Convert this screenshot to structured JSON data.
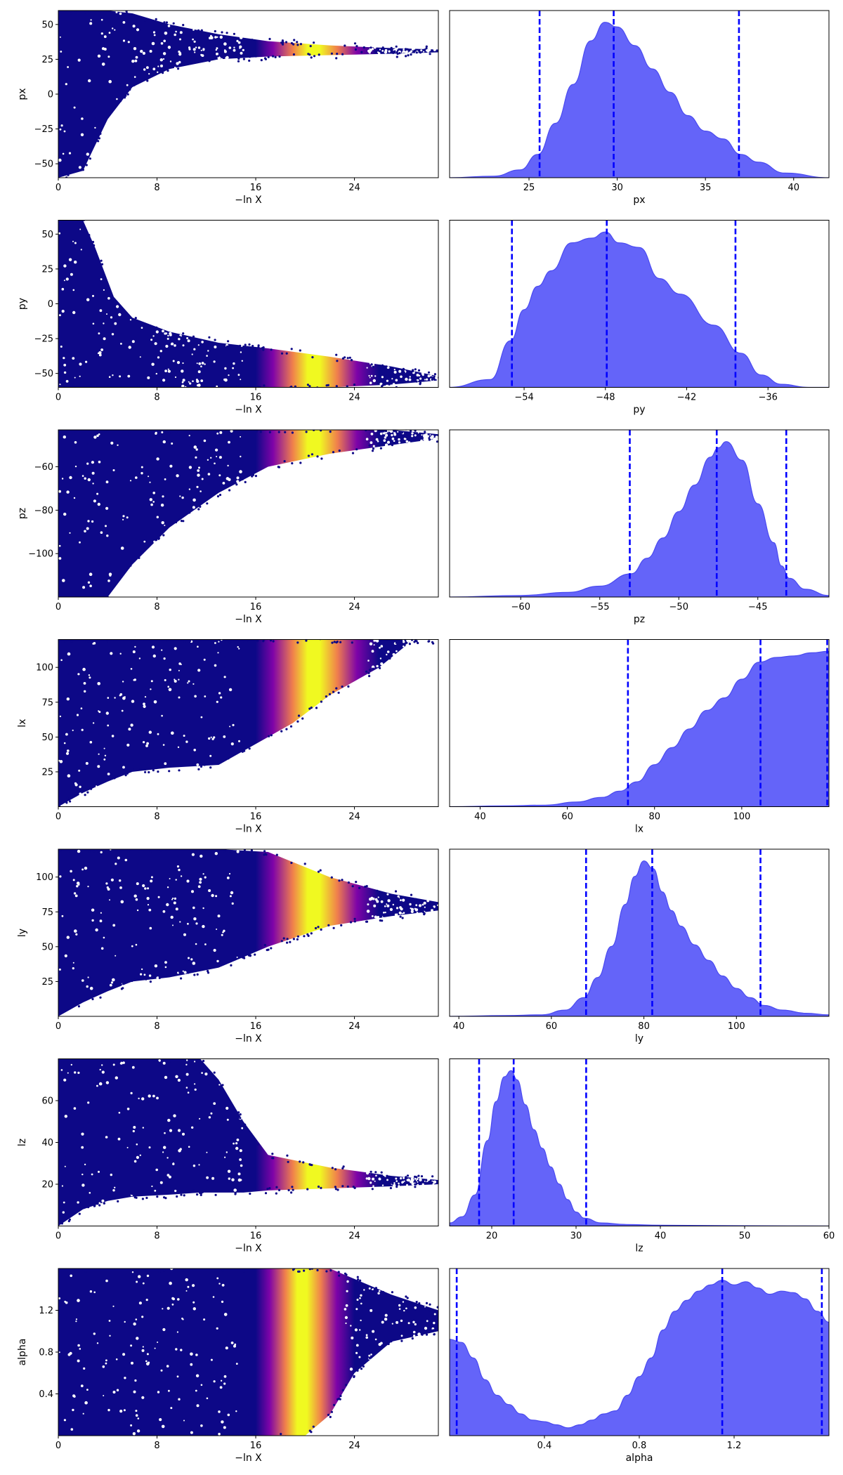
{
  "colors": {
    "kde_fill": "#6464f9",
    "kde_edge": "#4a4af0",
    "quantile_line": "#0000ff",
    "scatter_low": "#0d0887",
    "scatter_mid": "#7e03a8",
    "scatter_orange": "#f0804c",
    "scatter_peak": "#f0f921"
  },
  "chart_data": [
    {
      "param": "px",
      "trace": {
        "type": "scatter",
        "xlabel": "−ln X",
        "ylabel": "px",
        "xlim": [
          0,
          30.8
        ],
        "ylim": [
          -60,
          60
        ],
        "xticks": [
          {
            "v": 0,
            "t": "0"
          },
          {
            "v": 8,
            "t": "8"
          },
          {
            "v": 16,
            "t": "16"
          },
          {
            "v": 24,
            "t": "24"
          }
        ],
        "yticks": [
          {
            "v": -50,
            "t": "−50"
          },
          {
            "v": -25,
            "t": "−25"
          },
          {
            "v": 0,
            "t": "0"
          },
          {
            "v": 25,
            "t": "25"
          },
          {
            "v": 50,
            "t": "50"
          }
        ],
        "envelope": {
          "x": [
            0,
            2,
            4,
            6,
            9,
            13,
            17,
            22,
            27,
            30.8
          ],
          "upper": [
            60,
            60,
            60,
            58,
            50,
            43,
            38,
            35,
            33,
            32
          ],
          "lower": [
            -60,
            -55,
            -18,
            5,
            18,
            25,
            27,
            28,
            29,
            30
          ]
        },
        "bright_band": [
          16,
          24
        ]
      },
      "posterior": {
        "type": "area",
        "xlabel": "px",
        "xlim": [
          20.5,
          42
        ],
        "xticks": [
          {
            "v": 25,
            "t": "25"
          },
          {
            "v": 30,
            "t": "30"
          },
          {
            "v": 35,
            "t": "35"
          },
          {
            "v": 40,
            "t": "40"
          }
        ],
        "x": [
          20.5,
          23,
          24.5,
          25.5,
          26.5,
          27.5,
          28.5,
          29.3,
          30,
          31,
          32,
          33,
          34,
          35,
          36,
          37,
          38,
          39.5,
          42
        ],
        "density": [
          0,
          0.01,
          0.05,
          0.15,
          0.35,
          0.6,
          0.88,
          1.0,
          0.97,
          0.85,
          0.7,
          0.55,
          0.4,
          0.3,
          0.25,
          0.15,
          0.1,
          0.03,
          0
        ],
        "quantiles": [
          25.6,
          29.8,
          36.9
        ]
      }
    },
    {
      "param": "py",
      "trace": {
        "type": "scatter",
        "xlabel": "−ln X",
        "ylabel": "py",
        "xlim": [
          0,
          30.8
        ],
        "ylim": [
          -60,
          60
        ],
        "xticks": [
          {
            "v": 0,
            "t": "0"
          },
          {
            "v": 8,
            "t": "8"
          },
          {
            "v": 16,
            "t": "16"
          },
          {
            "v": 24,
            "t": "24"
          }
        ],
        "yticks": [
          {
            "v": -50,
            "t": "−50"
          },
          {
            "v": -25,
            "t": "−25"
          },
          {
            "v": 0,
            "t": "0"
          },
          {
            "v": 25,
            "t": "25"
          },
          {
            "v": 50,
            "t": "50"
          }
        ],
        "envelope": {
          "x": [
            0,
            2,
            3,
            4.5,
            6,
            9,
            13,
            17,
            22,
            27,
            30.8
          ],
          "upper": [
            60,
            60,
            40,
            5,
            -10,
            -20,
            -28,
            -32,
            -38,
            -45,
            -52
          ],
          "lower": [
            -60,
            -60,
            -60,
            -60,
            -60,
            -60,
            -60,
            -60,
            -60,
            -58,
            -55
          ]
        },
        "bright_band": [
          16,
          24
        ]
      },
      "posterior": {
        "type": "area",
        "xlabel": "py",
        "xlim": [
          -59.5,
          -31.5
        ],
        "xticks": [
          {
            "v": -54,
            "t": "−54"
          },
          {
            "v": -48,
            "t": "−48"
          },
          {
            "v": -42,
            "t": "−42"
          },
          {
            "v": -36,
            "t": "−36"
          }
        ],
        "x": [
          -59.5,
          -56.5,
          -55,
          -54,
          -53,
          -52,
          -50.5,
          -49,
          -48,
          -47,
          -45.5,
          -44,
          -42.5,
          -40,
          -38,
          -36.5,
          -35,
          -33,
          -31.5
        ],
        "density": [
          0,
          0.05,
          0.3,
          0.5,
          0.65,
          0.75,
          0.93,
          0.96,
          1.0,
          0.93,
          0.9,
          0.7,
          0.6,
          0.4,
          0.22,
          0.08,
          0.02,
          0,
          0
        ],
        "quantiles": [
          -54.9,
          -47.9,
          -38.4
        ]
      }
    },
    {
      "param": "pz",
      "trace": {
        "type": "scatter",
        "xlabel": "−ln X",
        "ylabel": "pz",
        "xlim": [
          0,
          30.8
        ],
        "ylim": [
          -120,
          -43
        ],
        "xticks": [
          {
            "v": 0,
            "t": "0"
          },
          {
            "v": 8,
            "t": "8"
          },
          {
            "v": 16,
            "t": "16"
          },
          {
            "v": 24,
            "t": "24"
          }
        ],
        "yticks": [
          {
            "v": -100,
            "t": "−100"
          },
          {
            "v": -80,
            "t": "−80"
          },
          {
            "v": -60,
            "t": "−60"
          }
        ],
        "envelope": {
          "x": [
            0,
            2,
            4,
            6,
            9,
            13,
            17,
            22,
            27,
            30.8
          ],
          "upper": [
            -43,
            -43,
            -43,
            -43,
            -43,
            -43,
            -43,
            -43,
            -43,
            -45
          ],
          "lower": [
            -120,
            -120,
            -120,
            -105,
            -88,
            -72,
            -60,
            -54,
            -50,
            -47
          ]
        },
        "bright_band": [
          16,
          24
        ]
      },
      "posterior": {
        "type": "area",
        "xlabel": "pz",
        "xlim": [
          -64.5,
          -40.5
        ],
        "xticks": [
          {
            "v": -60,
            "t": "−60"
          },
          {
            "v": -55,
            "t": "−55"
          },
          {
            "v": -50,
            "t": "−50"
          },
          {
            "v": -45,
            "t": "−45"
          }
        ],
        "x": [
          -64.5,
          -60,
          -57,
          -55,
          -53,
          -52,
          -51,
          -50,
          -49,
          -48,
          -47.5,
          -47,
          -46,
          -45,
          -44,
          -43.5,
          -43,
          -42,
          -40.5
        ],
        "density": [
          0,
          0.01,
          0.03,
          0.07,
          0.15,
          0.25,
          0.38,
          0.55,
          0.72,
          0.9,
          0.96,
          1.0,
          0.88,
          0.6,
          0.35,
          0.2,
          0.12,
          0.05,
          0.01
        ],
        "quantiles": [
          -53.1,
          -47.6,
          -43.2
        ]
      }
    },
    {
      "param": "lx",
      "trace": {
        "type": "scatter",
        "xlabel": "−ln X",
        "ylabel": "lx",
        "xlim": [
          0,
          30.8
        ],
        "ylim": [
          0,
          120
        ],
        "xticks": [
          {
            "v": 0,
            "t": "0"
          },
          {
            "v": 8,
            "t": "8"
          },
          {
            "v": 16,
            "t": "16"
          },
          {
            "v": 24,
            "t": "24"
          }
        ],
        "yticks": [
          {
            "v": 25,
            "t": "25"
          },
          {
            "v": 50,
            "t": "50"
          },
          {
            "v": 75,
            "t": "75"
          },
          {
            "v": 100,
            "t": "100"
          }
        ],
        "envelope": {
          "x": [
            0,
            2,
            4,
            6,
            9,
            13,
            16,
            19,
            22,
            26,
            28.5
          ],
          "upper": [
            120,
            120,
            120,
            120,
            120,
            120,
            120,
            120,
            120,
            120,
            120
          ],
          "lower": [
            0,
            10,
            18,
            25,
            28,
            30,
            45,
            60,
            80,
            100,
            118
          ]
        },
        "bright_band": [
          16,
          24
        ]
      },
      "posterior": {
        "type": "area",
        "xlabel": "lx",
        "xlim": [
          33,
          120
        ],
        "xticks": [
          {
            "v": 40,
            "t": "40"
          },
          {
            "v": 60,
            "t": "60"
          },
          {
            "v": 80,
            "t": "80"
          },
          {
            "v": 100,
            "t": "100"
          }
        ],
        "x": [
          33,
          45,
          55,
          62,
          68,
          72,
          76,
          80,
          84,
          88,
          92,
          96,
          100,
          104,
          108,
          112,
          116,
          120
        ],
        "density": [
          0,
          0.005,
          0.01,
          0.03,
          0.06,
          0.1,
          0.16,
          0.27,
          0.38,
          0.5,
          0.62,
          0.7,
          0.82,
          0.93,
          0.96,
          0.97,
          0.99,
          1.0
        ],
        "quantiles": [
          73.9,
          104.3,
          119.6
        ]
      }
    },
    {
      "param": "ly",
      "trace": {
        "type": "scatter",
        "xlabel": "−ln X",
        "ylabel": "ly",
        "xlim": [
          0,
          30.8
        ],
        "ylim": [
          0,
          120
        ],
        "xticks": [
          {
            "v": 0,
            "t": "0"
          },
          {
            "v": 8,
            "t": "8"
          },
          {
            "v": 16,
            "t": "16"
          },
          {
            "v": 24,
            "t": "24"
          }
        ],
        "yticks": [
          {
            "v": 25,
            "t": "25"
          },
          {
            "v": 50,
            "t": "50"
          },
          {
            "v": 75,
            "t": "75"
          },
          {
            "v": 100,
            "t": "100"
          }
        ],
        "envelope": {
          "x": [
            0,
            2,
            4,
            6,
            9,
            13,
            17,
            22,
            27,
            30.8
          ],
          "upper": [
            120,
            120,
            120,
            120,
            120,
            120,
            118,
            100,
            88,
            82
          ],
          "lower": [
            0,
            10,
            18,
            25,
            28,
            35,
            50,
            65,
            72,
            76
          ]
        },
        "bright_band": [
          16,
          24
        ]
      },
      "posterior": {
        "type": "area",
        "xlabel": "ly",
        "xlim": [
          38,
          120
        ],
        "xticks": [
          {
            "v": 40,
            "t": "40"
          },
          {
            "v": 60,
            "t": "60"
          },
          {
            "v": 80,
            "t": "80"
          },
          {
            "v": 100,
            "t": "100"
          }
        ],
        "x": [
          38,
          50,
          58,
          63,
          67,
          70,
          73,
          76,
          78,
          80,
          82,
          84,
          86,
          88,
          91,
          94,
          97,
          100,
          103,
          106,
          110,
          115,
          120
        ],
        "density": [
          0,
          0.005,
          0.01,
          0.04,
          0.12,
          0.25,
          0.45,
          0.72,
          0.9,
          1.0,
          0.95,
          0.8,
          0.68,
          0.58,
          0.46,
          0.36,
          0.26,
          0.18,
          0.12,
          0.07,
          0.04,
          0.02,
          0.01
        ],
        "quantiles": [
          67.5,
          81.8,
          105.2
        ]
      }
    },
    {
      "param": "lz",
      "trace": {
        "type": "scatter",
        "xlabel": "−ln X",
        "ylabel": "lz",
        "xlim": [
          0,
          30.8
        ],
        "ylim": [
          0,
          80
        ],
        "xticks": [
          {
            "v": 0,
            "t": "0"
          },
          {
            "v": 8,
            "t": "8"
          },
          {
            "v": 16,
            "t": "16"
          },
          {
            "v": 24,
            "t": "24"
          }
        ],
        "yticks": [
          {
            "v": 20,
            "t": "20"
          },
          {
            "v": 40,
            "t": "40"
          },
          {
            "v": 60,
            "t": "60"
          }
        ],
        "envelope": {
          "x": [
            0,
            2,
            4,
            6,
            9,
            11.5,
            13,
            15,
            17,
            22,
            27,
            30.8
          ],
          "upper": [
            80,
            80,
            80,
            80,
            80,
            80,
            70,
            50,
            34,
            28,
            24,
            22
          ],
          "lower": [
            0,
            8,
            12,
            14,
            15,
            16,
            16,
            16,
            17,
            18,
            19,
            20
          ]
        },
        "bright_band": [
          16,
          24
        ]
      },
      "posterior": {
        "type": "area",
        "xlabel": "lz",
        "xlim": [
          15,
          60
        ],
        "xticks": [
          {
            "v": 20,
            "t": "20"
          },
          {
            "v": 30,
            "t": "30"
          },
          {
            "v": 40,
            "t": "40"
          },
          {
            "v": 50,
            "t": "50"
          },
          {
            "v": 60,
            "t": "60"
          }
        ],
        "x": [
          15,
          16.5,
          18,
          19.5,
          20.5,
          21.5,
          22.3,
          23,
          24,
          25,
          26,
          27,
          28,
          29,
          30,
          31,
          33,
          36,
          40,
          50,
          60
        ],
        "density": [
          0.02,
          0.06,
          0.2,
          0.55,
          0.8,
          0.96,
          1.0,
          0.94,
          0.78,
          0.62,
          0.5,
          0.38,
          0.27,
          0.17,
          0.09,
          0.05,
          0.02,
          0.01,
          0.005,
          0.002,
          0
        ],
        "quantiles": [
          18.5,
          22.6,
          31.2
        ]
      }
    },
    {
      "param": "alpha",
      "trace": {
        "type": "scatter",
        "xlabel": "−ln X",
        "ylabel": "alpha",
        "xlim": [
          0,
          30.8
        ],
        "ylim": [
          0,
          1.6
        ],
        "xticks": [
          {
            "v": 0,
            "t": "0"
          },
          {
            "v": 8,
            "t": "8"
          },
          {
            "v": 16,
            "t": "16"
          },
          {
            "v": 24,
            "t": "24"
          }
        ],
        "yticks": [
          {
            "v": 0.4,
            "t": "0.4"
          },
          {
            "v": 0.8,
            "t": "0.8"
          },
          {
            "v": 1.2,
            "t": "1.2"
          }
        ],
        "envelope": {
          "x": [
            0,
            4,
            8,
            12,
            16,
            18,
            20,
            22,
            24,
            27,
            30.8
          ],
          "upper": [
            1.6,
            1.6,
            1.6,
            1.6,
            1.6,
            1.6,
            1.6,
            1.6,
            1.5,
            1.35,
            1.2
          ],
          "lower": [
            0,
            0,
            0,
            0,
            0,
            0,
            0,
            0.2,
            0.6,
            0.9,
            1.0
          ]
        },
        "bright_band": [
          16,
          22
        ]
      },
      "posterior": {
        "type": "area",
        "xlabel": "alpha",
        "xlim": [
          0,
          1.6
        ],
        "xticks": [
          {
            "v": 0.4,
            "t": "0.4"
          },
          {
            "v": 0.8,
            "t": "0.8"
          },
          {
            "v": 1.2,
            "t": "1.2"
          }
        ],
        "x": [
          0,
          0.05,
          0.1,
          0.15,
          0.2,
          0.25,
          0.3,
          0.35,
          0.4,
          0.45,
          0.5,
          0.55,
          0.6,
          0.65,
          0.7,
          0.75,
          0.8,
          0.85,
          0.9,
          0.95,
          1.0,
          1.05,
          1.1,
          1.15,
          1.2,
          1.25,
          1.3,
          1.35,
          1.4,
          1.45,
          1.5,
          1.55,
          1.6
        ],
        "density": [
          0.62,
          0.6,
          0.5,
          0.36,
          0.26,
          0.2,
          0.14,
          0.1,
          0.09,
          0.07,
          0.05,
          0.07,
          0.1,
          0.14,
          0.16,
          0.26,
          0.38,
          0.5,
          0.68,
          0.8,
          0.87,
          0.93,
          0.97,
          1.0,
          0.97,
          0.99,
          0.95,
          0.91,
          0.93,
          0.92,
          0.88,
          0.8,
          0.73
        ],
        "quantiles": [
          0.03,
          1.15,
          1.57
        ]
      }
    }
  ]
}
